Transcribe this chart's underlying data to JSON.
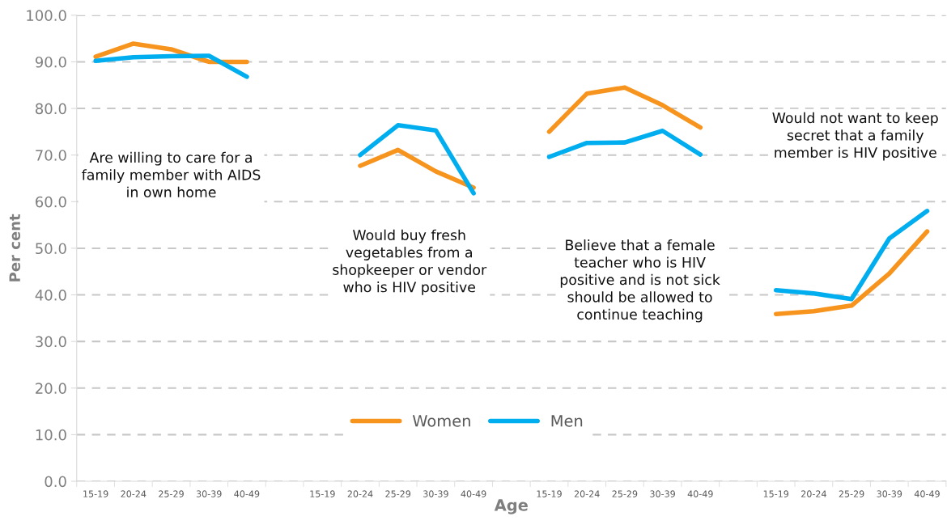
{
  "chart_data": {
    "type": "line",
    "xlabel": "Age",
    "ylabel": "Per cent",
    "categories": [
      "15-19",
      "20-24",
      "25-29",
      "30-39",
      "40-49",
      null,
      "15-19",
      "20-24",
      "25-29",
      "30-39",
      "40-49",
      null,
      "15-19",
      "20-24",
      "25-29",
      "30-39",
      "40-49",
      null,
      "15-19",
      "20-24",
      "25-29",
      "30-39",
      "40-49"
    ],
    "series": [
      {
        "name": "Women",
        "color": "#f7941d",
        "values": [
          91.1,
          93.9,
          92.7,
          90.0,
          90.0,
          null,
          null,
          67.7,
          71.1,
          66.5,
          63.0,
          null,
          75.0,
          83.2,
          84.5,
          80.7,
          75.9,
          null,
          35.9,
          36.5,
          37.7,
          44.6,
          53.6
        ]
      },
      {
        "name": "Men",
        "color": "#00aeef",
        "values": [
          90.2,
          91.0,
          91.2,
          91.3,
          86.8,
          null,
          null,
          70.0,
          76.4,
          75.3,
          61.8,
          null,
          69.6,
          72.6,
          72.7,
          75.2,
          70.1,
          null,
          41.0,
          40.3,
          39.1,
          52.1,
          58.0
        ]
      }
    ],
    "annotations": [
      "Are willing to care for a\nfamily member with AIDS\nin own home",
      "Would buy fresh\nvegetables from a\nshopkeeper or vendor\nwho is HIV positive",
      "Believe that a female\nteacher who is HIV\npositive and is not sick\nshould be allowed to\ncontinue teaching",
      "Would not want to keep\nsecret that a family\nmember is HIV positive"
    ],
    "ylim": [
      0,
      100
    ],
    "yticks": [
      {
        "value": 0,
        "label": "0.0"
      },
      {
        "value": 10,
        "label": "10.0"
      },
      {
        "value": 20,
        "label": "20.0"
      },
      {
        "value": 30,
        "label": "30.0"
      },
      {
        "value": 40,
        "label": "40.0"
      },
      {
        "value": 50,
        "label": "50.0"
      },
      {
        "value": 60,
        "label": "60.0"
      },
      {
        "value": 70,
        "label": "70.0"
      },
      {
        "value": 80,
        "label": "80.0"
      },
      {
        "value": 90,
        "label": "90.0"
      },
      {
        "value": 100,
        "label": "100.0"
      }
    ],
    "grid": "y",
    "legend": "bottom",
    "marker": "none",
    "line_style": "solid"
  }
}
